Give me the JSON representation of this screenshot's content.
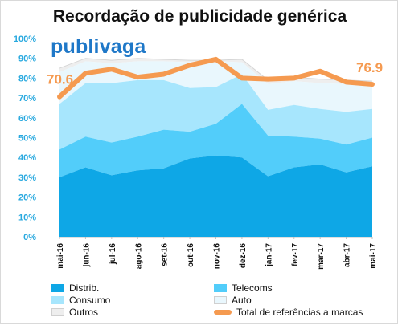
{
  "title": "Recordação de publicidade genérica",
  "brand": "publivaga",
  "callouts": {
    "start": "70.6",
    "end": "76.9"
  },
  "legend": [
    {
      "id": "distrib",
      "label": "Distrib.",
      "color": "#0ea7e6",
      "kind": "area"
    },
    {
      "id": "telecoms",
      "label": "Telecoms",
      "color": "#52cdfa",
      "kind": "area"
    },
    {
      "id": "consumo",
      "label": "Consumo",
      "color": "#a7e6fd",
      "kind": "area"
    },
    {
      "id": "auto",
      "label": "Auto",
      "color": "#e9f7fd",
      "kind": "area"
    },
    {
      "id": "outros",
      "label": "Outros",
      "color": "#eeeeee",
      "kind": "area"
    },
    {
      "id": "total",
      "label": "Total de referências a marcas",
      "color": "#f59a50",
      "kind": "line"
    }
  ],
  "chart_data": {
    "type": "area",
    "title": "Recordação de publicidade genérica",
    "categories": [
      "mai-16",
      "jun-16",
      "jul-16",
      "ago-16",
      "set-16",
      "out-16",
      "nov-16",
      "dez-16",
      "jan-17",
      "fev-17",
      "mar-17",
      "abr-17",
      "mai-17"
    ],
    "ylim": [
      0,
      100
    ],
    "ytick_step": 10,
    "ytick_format": "percent",
    "series": [
      {
        "name": "Distrib.",
        "kind": "stacked-area",
        "color": "#0ea7e6",
        "values": [
          30,
          35,
          31,
          33.5,
          34.5,
          39.5,
          41,
          40,
          30.5,
          35,
          36.5,
          32.5,
          35.5
        ]
      },
      {
        "name": "Telecoms",
        "kind": "stacked-area",
        "color": "#52cdfa",
        "values": [
          14,
          15.5,
          16.5,
          17,
          19.5,
          13.5,
          16,
          27,
          20.5,
          15.5,
          13,
          14,
          14.5
        ]
      },
      {
        "name": "Consumo",
        "kind": "stacked-area",
        "color": "#a7e6fd",
        "values": [
          23,
          27,
          30,
          28.5,
          25,
          22,
          18.5,
          15,
          13,
          16,
          15,
          16.5,
          14.5
        ]
      },
      {
        "name": "Auto",
        "kind": "stacked-area",
        "color": "#e9f7fd",
        "values": [
          16,
          11,
          10,
          9.5,
          9.5,
          13,
          13,
          6,
          13,
          12,
          13,
          14,
          12
        ]
      },
      {
        "name": "Outros",
        "kind": "stacked-area",
        "color": "#eeeeee",
        "values": [
          2,
          1.5,
          1.5,
          1.5,
          1,
          1,
          0.5,
          1.5,
          2,
          2,
          2,
          2,
          2
        ]
      },
      {
        "name": "Total de referências a marcas",
        "kind": "line",
        "color": "#f59a50",
        "values": [
          70.6,
          82.5,
          84.5,
          80.5,
          82,
          86.5,
          89.5,
          80,
          79.5,
          80,
          83.5,
          78,
          76.9
        ]
      }
    ],
    "grid": false,
    "legend_position": "bottom"
  }
}
